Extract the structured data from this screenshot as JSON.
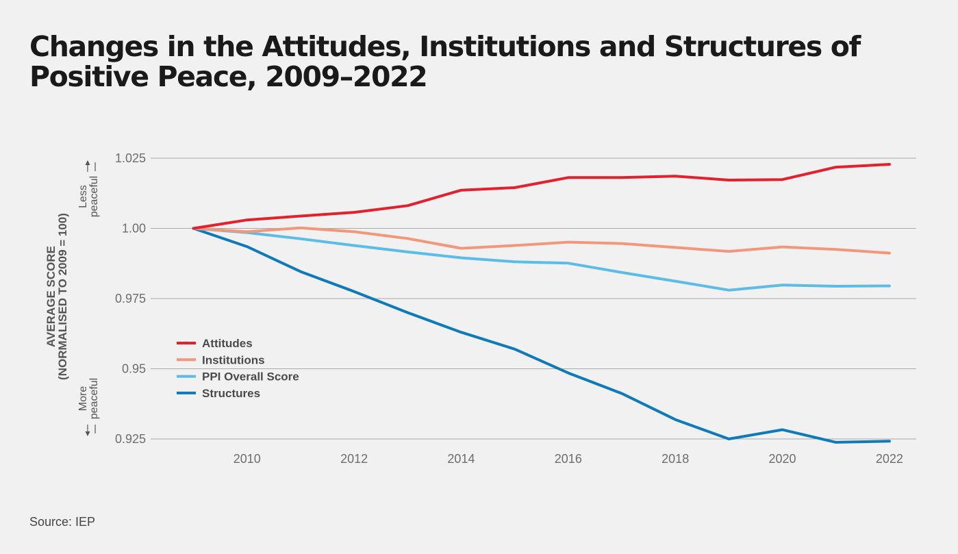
{
  "title": "Changes in the Attitudes, Institutions and Structures of Positive Peace, 2009–2022",
  "source": "Source: IEP",
  "chart_data": {
    "type": "line",
    "title": "Changes in the Attitudes, Institutions and Structures of Positive Peace, 2009–2022",
    "ylabel": "AVERAGE SCORE",
    "ylabel_sub": "(NORMALISED TO 2009 = 100)",
    "direction_labels": {
      "top": [
        "Less",
        "peaceful"
      ],
      "bottom": [
        "More",
        "peaceful"
      ]
    },
    "xlim": [
      2008.2,
      2022.5
    ],
    "ylim": [
      0.925,
      1.025
    ],
    "x_ticks": [
      2010,
      2012,
      2014,
      2016,
      2018,
      2020,
      2022
    ],
    "y_ticks": [
      0.925,
      0.95,
      0.975,
      1.0,
      1.025
    ],
    "y_tick_labels": [
      "0.925",
      "0.95",
      "0.975",
      "1.00",
      "1.025"
    ],
    "grid": "horizontal",
    "legend": "middle-left",
    "x": [
      2009,
      2010,
      2011,
      2012,
      2013,
      2014,
      2015,
      2016,
      2017,
      2018,
      2019,
      2020,
      2021,
      2022
    ],
    "series": [
      {
        "name": "Attitudes",
        "color": "#e3202c",
        "values": [
          1.0,
          1.003,
          1.0044,
          1.0057,
          1.0081,
          1.0136,
          1.0145,
          1.0181,
          1.0181,
          1.0186,
          1.0172,
          1.0174,
          1.0218,
          1.0228
        ]
      },
      {
        "name": "Institutions",
        "color": "#f2977a",
        "values": [
          1.0,
          0.9988,
          1.0002,
          0.9988,
          0.9964,
          0.9929,
          0.9939,
          0.9951,
          0.9946,
          0.9932,
          0.9918,
          0.9934,
          0.9925,
          0.9912
        ]
      },
      {
        "name": "PPI Overall Score",
        "color": "#5bbde6",
        "values": [
          1.0,
          0.9985,
          0.9963,
          0.9939,
          0.9916,
          0.9895,
          0.9881,
          0.9876,
          0.9843,
          0.9812,
          0.978,
          0.9798,
          0.9794,
          0.9795
        ]
      },
      {
        "name": "Structures",
        "color": "#0e7ab9",
        "values": [
          1.0,
          0.9935,
          0.9846,
          0.9775,
          0.97,
          0.963,
          0.957,
          0.9485,
          0.9412,
          0.9319,
          0.925,
          0.9283,
          0.9238,
          0.9242
        ]
      }
    ]
  }
}
